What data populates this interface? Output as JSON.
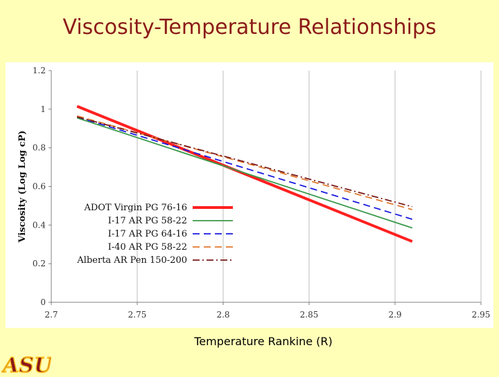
{
  "slide": {
    "title": "Viscosity-Temperature Relationships",
    "xlabel": "Temperature Rankine (R)",
    "logo_text": "ASU"
  },
  "chart_data": {
    "type": "line",
    "ylabel": "Viscosity (Log Log cP)",
    "xlim": [
      2.7,
      2.95
    ],
    "ylim": [
      0,
      1.2
    ],
    "x_ticks": [
      "2.7",
      "2.75",
      "2.8",
      "2.85",
      "2.9",
      "2.95"
    ],
    "y_ticks": [
      "0",
      "0.2",
      "0.4",
      "0.6",
      "0.8",
      "1",
      "1.2"
    ],
    "grid": "vertical",
    "legend_position": "lower-left",
    "series": [
      {
        "name": "ADOT Virgin PG 76-16",
        "color": "#FF2020",
        "dash": "solid",
        "width": "thick",
        "x": [
          2.715,
          2.91
        ],
        "y": [
          1.015,
          0.315
        ]
      },
      {
        "name": "I-17 AR PG 58-22",
        "color": "#3A9A4A",
        "dash": "solid",
        "width": "normal",
        "x": [
          2.715,
          2.91
        ],
        "y": [
          0.955,
          0.385
        ]
      },
      {
        "name": "I-17 AR PG 64-16",
        "color": "#1A1AE0",
        "dash": "dash",
        "width": "normal",
        "x": [
          2.715,
          2.91
        ],
        "y": [
          0.96,
          0.43
        ]
      },
      {
        "name": "I-40 AR PG 58-22",
        "color": "#E07A30",
        "dash": "dash",
        "width": "normal",
        "x": [
          2.715,
          2.91
        ],
        "y": [
          0.965,
          0.48
        ]
      },
      {
        "name": "Alberta AR Pen 150-200",
        "color": "#7A1A1A",
        "dash": "dashdot",
        "width": "normal",
        "x": [
          2.715,
          2.91
        ],
        "y": [
          0.96,
          0.495
        ]
      }
    ]
  }
}
